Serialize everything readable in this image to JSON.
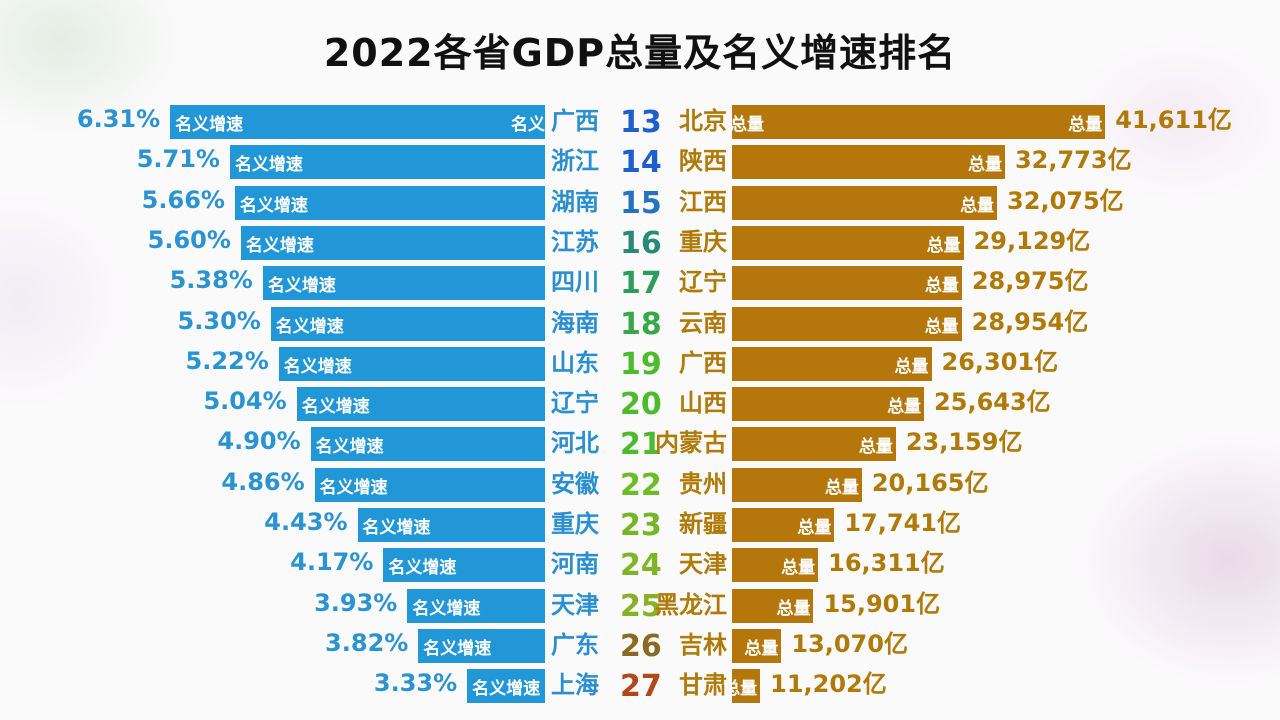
{
  "title": "2022各省GDP总量及名义增速排名",
  "chart_data": {
    "type": "bar",
    "title": "2022各省GDP总量及名义增速排名",
    "bar_label_left": "名义增速",
    "bar_label_right": "总量",
    "unit_right": "亿",
    "colors": {
      "left_bar": "#2297d8",
      "right_bar": "#b5770b",
      "left_text": "#2a8fd0",
      "right_text": "#b07a08"
    },
    "ranks": [
      13,
      14,
      15,
      16,
      17,
      18,
      19,
      20,
      21,
      22,
      23,
      24,
      25,
      26,
      27
    ],
    "rank_colors": [
      "#1d5fcb",
      "#1d5fcb",
      "#2472c0",
      "#2a8a78",
      "#2e9c5a",
      "#39a84a",
      "#4cbb2c",
      "#4cbb2c",
      "#4cbb2c",
      "#6cbc26",
      "#74b628",
      "#7db428",
      "#86b026",
      "#8a6a20",
      "#b0481a"
    ],
    "growth": {
      "provinces": [
        "广西",
        "浙江",
        "湖南",
        "江苏",
        "四川",
        "海南",
        "山东",
        "辽宁",
        "河北",
        "安徽",
        "重庆",
        "河南",
        "天津",
        "广东",
        "上海"
      ],
      "values": [
        6.31,
        5.71,
        5.66,
        5.6,
        5.38,
        5.3,
        5.22,
        5.04,
        4.9,
        4.86,
        4.43,
        4.17,
        3.93,
        3.82,
        3.33
      ],
      "labels": [
        "6.31%",
        "5.71%",
        "5.66%",
        "5.60%",
        "5.38%",
        "5.30%",
        "5.22%",
        "5.04%",
        "4.90%",
        "4.86%",
        "4.43%",
        "4.17%",
        "3.93%",
        "3.82%",
        "3.33%"
      ],
      "extra_label_row1": "名义"
    },
    "gdp": {
      "provinces": [
        "北京",
        "陕西",
        "江西",
        "重庆",
        "辽宁",
        "云南",
        "广西",
        "山西",
        "内蒙古",
        "贵州",
        "新疆",
        "天津",
        "黑龙江",
        "吉林",
        "甘肃"
      ],
      "values": [
        41611,
        32773,
        32075,
        29129,
        28975,
        28954,
        26301,
        25643,
        23159,
        20165,
        17741,
        16311,
        15901,
        13070,
        11202
      ],
      "labels": [
        "41,611亿",
        "32,773亿",
        "32,075亿",
        "29,129亿",
        "28,975亿",
        "28,954亿",
        "26,301亿",
        "25,643亿",
        "23,159亿",
        "20,165亿",
        "17,741亿",
        "16,311亿",
        "15,901亿",
        "13,070亿",
        "11,202亿"
      ]
    }
  }
}
